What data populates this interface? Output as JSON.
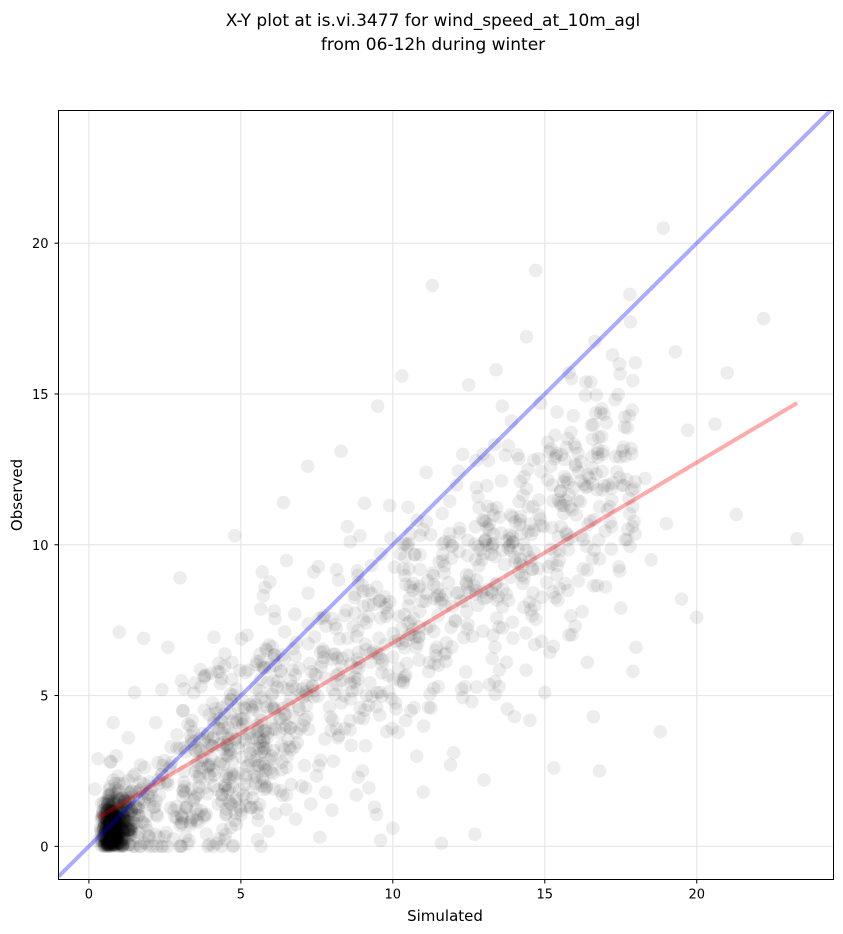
{
  "chart_data": {
    "type": "scatter",
    "title_lines": [
      "X-Y plot at is.vi.3477 for wind_speed_at_10m_agl",
      "from 06-12h during winter"
    ],
    "xlabel": "Simulated",
    "ylabel": "Observed",
    "xlim": [
      -1.0,
      24.5
    ],
    "ylim": [
      -1.1,
      24.4
    ],
    "xticks": [
      0,
      5,
      10,
      15,
      20
    ],
    "yticks": [
      0,
      5,
      10,
      15,
      20
    ],
    "grid": true,
    "colors": {
      "points": "#000000",
      "identity_line": "#0000ff",
      "fit_line": "#ff0000",
      "grid": "#e6e6e6"
    },
    "identity_line": {
      "x": [
        -1.0,
        24.5
      ],
      "y": [
        -1.0,
        24.5
      ]
    },
    "fit_line": {
      "x": [
        0.3,
        23.3
      ],
      "y": [
        0.95,
        14.7
      ]
    },
    "scatter_note_points": [
      [
        1.0,
        0.8
      ],
      [
        0.6,
        1.5
      ],
      [
        0.8,
        2.2
      ],
      [
        1.2,
        0.5
      ],
      [
        0.5,
        0.4
      ],
      [
        0.9,
        3.0
      ],
      [
        1.4,
        1.8
      ],
      [
        0.7,
        2.8
      ],
      [
        1.1,
        1.1
      ],
      [
        0.4,
        0.9
      ],
      [
        1.6,
        0.3
      ],
      [
        2.0,
        1.4
      ],
      [
        2.5,
        2.1
      ],
      [
        3.0,
        0.7
      ],
      [
        3.5,
        1.6
      ],
      [
        4.0,
        2.3
      ],
      [
        4.5,
        0.4
      ],
      [
        5.0,
        1.2
      ],
      [
        2.2,
        4.1
      ],
      [
        3.1,
        4.5
      ],
      [
        2.7,
        3.3
      ],
      [
        3.8,
        5.6
      ],
      [
        4.7,
        6.1
      ],
      [
        5.2,
        7.0
      ],
      [
        6.1,
        7.8
      ],
      [
        6.7,
        5.3
      ],
      [
        7.4,
        9.1
      ],
      [
        8.0,
        6.2
      ],
      [
        8.6,
        10.1
      ],
      [
        9.2,
        8.0
      ],
      [
        9.9,
        11.3
      ],
      [
        10.5,
        7.4
      ],
      [
        11.1,
        12.4
      ],
      [
        11.7,
        9.3
      ],
      [
        12.3,
        13.0
      ],
      [
        13.0,
        10.8
      ],
      [
        13.6,
        14.6
      ],
      [
        14.2,
        12.1
      ],
      [
        14.8,
        11.0
      ],
      [
        15.4,
        9.0
      ],
      [
        6.0,
        3.0
      ],
      [
        7.0,
        2.0
      ],
      [
        8.0,
        1.2
      ],
      [
        9.0,
        2.5
      ],
      [
        10.0,
        0.6
      ],
      [
        11.0,
        1.8
      ],
      [
        12.0,
        3.1
      ],
      [
        13.0,
        2.2
      ],
      [
        14.0,
        4.3
      ],
      [
        15.0,
        5.1
      ],
      [
        16.0,
        7.3
      ],
      [
        17.0,
        8.6
      ],
      [
        18.0,
        6.6
      ],
      [
        19.0,
        10.7
      ],
      [
        20.0,
        7.6
      ],
      [
        21.0,
        15.7
      ],
      [
        22.2,
        17.5
      ],
      [
        23.3,
        10.2
      ],
      [
        18.9,
        20.5
      ],
      [
        14.7,
        19.1
      ],
      [
        11.3,
        18.6
      ],
      [
        19.3,
        16.4
      ],
      [
        17.8,
        18.3
      ],
      [
        15.8,
        15.7
      ],
      [
        16.9,
        13.0
      ],
      [
        20.6,
        14.0
      ],
      [
        21.3,
        11.0
      ],
      [
        19.7,
        13.8
      ],
      [
        18.3,
        12.2
      ],
      [
        17.2,
        10.6
      ],
      [
        1.0,
        7.1
      ],
      [
        1.8,
        6.9
      ],
      [
        2.6,
        6.6
      ],
      [
        3.0,
        8.9
      ],
      [
        4.8,
        10.3
      ],
      [
        5.7,
        9.1
      ],
      [
        6.4,
        11.4
      ],
      [
        7.2,
        12.6
      ],
      [
        8.3,
        13.1
      ],
      [
        9.5,
        14.6
      ],
      [
        10.3,
        15.6
      ],
      [
        12.5,
        15.3
      ],
      [
        13.4,
        15.8
      ],
      [
        13.9,
        14.1
      ],
      [
        14.4,
        16.9
      ],
      [
        15.2,
        12.6
      ],
      [
        16.3,
        12.0
      ],
      [
        16.6,
        4.3
      ],
      [
        16.8,
        2.5
      ],
      [
        15.3,
        2.6
      ],
      [
        12.7,
        0.4
      ],
      [
        11.6,
        0.1
      ],
      [
        9.6,
        0.2
      ],
      [
        8.8,
        1.7
      ],
      [
        7.6,
        0.3
      ],
      [
        6.8,
        0.9
      ],
      [
        5.9,
        0.5
      ],
      [
        4.2,
        0.1
      ],
      [
        3.3,
        0.2
      ],
      [
        2.3,
        0.3
      ],
      [
        0.3,
        2.9
      ],
      [
        0.2,
        1.9
      ],
      [
        0.3,
        0.2
      ],
      [
        1.3,
        3.6
      ],
      [
        1.7,
        2.7
      ],
      [
        2.1,
        2.0
      ],
      [
        1.5,
        5.1
      ],
      [
        0.8,
        4.1
      ],
      [
        1.9,
        1.0
      ],
      [
        2.8,
        1.2
      ],
      [
        4.3,
        3.9
      ],
      [
        5.1,
        4.6
      ],
      [
        5.6,
        2.5
      ],
      [
        6.3,
        5.8
      ],
      [
        7.1,
        4.2
      ],
      [
        7.8,
        7.3
      ],
      [
        8.4,
        5.0
      ],
      [
        9.1,
        6.7
      ],
      [
        9.8,
        3.8
      ],
      [
        10.4,
        9.6
      ],
      [
        11.0,
        10.5
      ],
      [
        11.5,
        6.0
      ],
      [
        12.1,
        8.4
      ],
      [
        12.8,
        11.6
      ],
      [
        13.3,
        7.0
      ],
      [
        13.8,
        9.9
      ],
      [
        14.5,
        8.1
      ],
      [
        15.1,
        13.4
      ],
      [
        15.7,
        10.4
      ],
      [
        16.4,
        6.1
      ],
      [
        17.5,
        7.9
      ],
      [
        18.5,
        9.5
      ],
      [
        19.5,
        8.2
      ],
      [
        18.8,
        3.8
      ],
      [
        17.9,
        5.8
      ],
      [
        16.1,
        8.8
      ],
      [
        14.9,
        6.8
      ],
      [
        13.5,
        5.3
      ],
      [
        12.6,
        4.8
      ],
      [
        11.9,
        2.7
      ],
      [
        10.7,
        4.6
      ],
      [
        9.4,
        1.3
      ],
      [
        8.2,
        3.6
      ],
      [
        7.3,
        1.4
      ],
      [
        6.6,
        3.3
      ],
      [
        5.4,
        1.9
      ],
      [
        4.6,
        3.0
      ],
      [
        3.7,
        2.6
      ],
      [
        2.9,
        3.7
      ],
      [
        2.4,
        5.2
      ]
    ]
  }
}
